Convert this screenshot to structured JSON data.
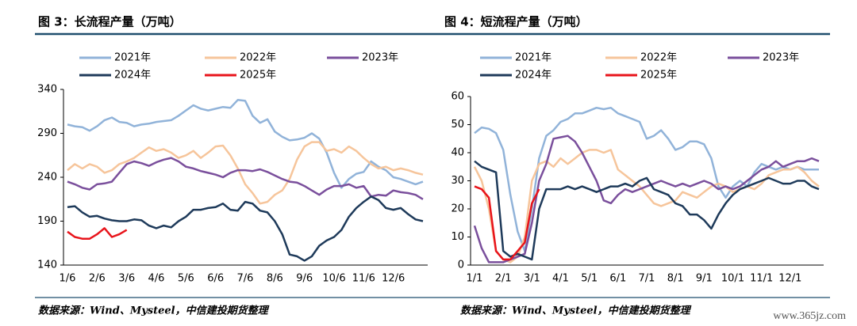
{
  "chart_data": [
    {
      "type": "line",
      "title": "图 3：长流程产量（万吨）",
      "source": "数据来源：Wind、Mysteel，中信建投期货整理",
      "categories": [
        "1/6",
        null,
        null,
        null,
        "2/6",
        null,
        null,
        null,
        "3/6",
        null,
        null,
        null,
        "4/6",
        null,
        null,
        null,
        "5/6",
        null,
        null,
        null,
        "6/6",
        null,
        null,
        null,
        "7/6",
        null,
        null,
        null,
        "8/6",
        null,
        null,
        null,
        "9/6",
        null,
        null,
        null,
        "10/6",
        null,
        null,
        null,
        "11/6",
        null,
        null,
        null,
        "12/6",
        null,
        null,
        null,
        null
      ],
      "ylim": [
        140,
        340
      ],
      "yticks": [
        140,
        190,
        240,
        290,
        340
      ],
      "series": [
        {
          "name": "2021年",
          "color": "#91b3d9",
          "values": [
            300,
            298,
            297,
            293,
            298,
            305,
            308,
            303,
            302,
            298,
            300,
            301,
            303,
            304,
            305,
            310,
            316,
            322,
            318,
            316,
            318,
            320,
            319,
            328,
            327,
            310,
            302,
            306,
            292,
            286,
            282,
            283,
            285,
            290,
            284,
            268,
            245,
            228,
            238,
            244,
            246,
            258,
            252,
            248,
            240,
            238,
            235,
            232,
            235
          ]
        },
        {
          "name": "2022年",
          "color": "#f6c59b",
          "values": [
            248,
            255,
            250,
            255,
            252,
            245,
            248,
            255,
            258,
            262,
            268,
            274,
            270,
            272,
            268,
            262,
            265,
            270,
            262,
            268,
            275,
            276,
            265,
            250,
            232,
            222,
            210,
            212,
            220,
            225,
            238,
            260,
            275,
            280,
            280,
            270,
            272,
            268,
            275,
            270,
            262,
            255,
            250,
            252,
            248,
            250,
            248,
            245,
            243
          ]
        },
        {
          "name": "2023年",
          "color": "#7a4f9c",
          "values": [
            235,
            232,
            228,
            226,
            232,
            233,
            235,
            245,
            255,
            258,
            256,
            253,
            257,
            260,
            262,
            258,
            252,
            250,
            247,
            245,
            243,
            240,
            245,
            248,
            248,
            247,
            249,
            246,
            242,
            238,
            235,
            234,
            230,
            225,
            220,
            226,
            230,
            230,
            232,
            228,
            230,
            218,
            220,
            219,
            225,
            223,
            222,
            220,
            215
          ]
        },
        {
          "name": "2024年",
          "color": "#1e3a5a",
          "values": [
            206,
            207,
            200,
            195,
            196,
            193,
            191,
            190,
            190,
            192,
            191,
            185,
            182,
            185,
            183,
            190,
            195,
            203,
            203,
            205,
            206,
            210,
            203,
            202,
            212,
            210,
            202,
            200,
            190,
            175,
            152,
            150,
            145,
            150,
            162,
            168,
            172,
            180,
            195,
            205,
            212,
            218,
            214,
            205,
            203,
            205,
            198,
            192,
            190
          ]
        },
        {
          "name": "2025年",
          "color": "#e8141b",
          "values": [
            178,
            172,
            170,
            170,
            175,
            182,
            172,
            175,
            180,
            null,
            null,
            null,
            null,
            null,
            null,
            null,
            null,
            null,
            null,
            null,
            null,
            null,
            null,
            null,
            null,
            null,
            null,
            null,
            null,
            null,
            null,
            null,
            null,
            null,
            null,
            null,
            null,
            null,
            null,
            null,
            null,
            null,
            null,
            null,
            null,
            null,
            null,
            null,
            null
          ]
        }
      ]
    },
    {
      "type": "line",
      "title": "图 4：短流程产量（万吨）",
      "source": "数据来源：Wind、Mysteel，中信建投期货整理",
      "categories": [
        "1/1",
        null,
        null,
        null,
        "2/1",
        null,
        null,
        null,
        "3/1",
        null,
        null,
        null,
        "4/1",
        null,
        null,
        null,
        "5/1",
        null,
        null,
        null,
        "6/1",
        null,
        null,
        null,
        "7/1",
        null,
        null,
        null,
        "8/1",
        null,
        null,
        null,
        "9/1",
        null,
        null,
        null,
        "10/1",
        null,
        null,
        null,
        "11/1",
        null,
        null,
        null,
        "12/1",
        null,
        null,
        null,
        null
      ],
      "ylim": [
        0,
        60
      ],
      "yticks": [
        0,
        10,
        20,
        30,
        40,
        50,
        60
      ],
      "series": [
        {
          "name": "2021年",
          "color": "#91b3d9",
          "values": [
            47,
            49,
            48.5,
            47,
            41,
            25,
            12,
            5,
            20,
            38,
            46,
            48,
            51,
            52,
            54,
            54,
            55,
            56,
            55.5,
            56,
            54,
            53,
            52,
            51,
            45,
            46,
            48,
            45,
            41,
            42,
            44,
            44,
            43,
            38,
            28,
            24,
            28,
            30,
            28,
            33,
            36,
            35,
            34,
            35,
            34,
            35,
            34,
            34,
            34
          ]
        },
        {
          "name": "2022年",
          "color": "#f6c59b",
          "values": [
            35,
            30,
            20,
            5,
            2,
            1,
            3,
            10,
            30,
            36,
            37,
            35,
            38,
            36,
            38,
            40,
            41,
            41,
            40,
            41,
            34,
            32,
            30,
            28,
            25,
            22,
            21,
            22,
            23,
            26,
            25,
            24,
            26,
            28,
            29,
            28,
            26,
            27,
            28,
            27,
            29,
            32,
            33,
            34,
            34,
            35,
            33,
            30,
            28
          ]
        },
        {
          "name": "2023年",
          "color": "#7a4f9c",
          "values": [
            14,
            6,
            1,
            1,
            1,
            2,
            3,
            4,
            15,
            30,
            36,
            45,
            45.5,
            46,
            44,
            40,
            35,
            30,
            23,
            22,
            25,
            27,
            26,
            27,
            28,
            29,
            30,
            29,
            28,
            29,
            28,
            29,
            30,
            29,
            27,
            28,
            27,
            28,
            30,
            32,
            34,
            35,
            37,
            35,
            36,
            37,
            37,
            38,
            37
          ]
        },
        {
          "name": "2024年",
          "color": "#1e3a5a",
          "values": [
            37,
            35,
            34,
            33,
            5,
            3,
            4,
            3,
            2,
            20,
            27,
            27,
            27,
            28,
            27,
            28,
            27,
            26,
            27,
            28,
            28,
            29,
            28,
            30,
            31,
            27,
            26,
            25,
            22,
            21,
            18,
            18,
            16,
            13,
            18,
            22,
            25,
            27,
            28,
            29,
            30,
            31,
            30,
            29,
            29,
            30,
            30,
            28,
            27
          ]
        },
        {
          "name": "2025年",
          "color": "#e8141b",
          "values": [
            28,
            27,
            24,
            5,
            2,
            2,
            5,
            8,
            22,
            27,
            null,
            null,
            null,
            null,
            null,
            null,
            null,
            null,
            null,
            null,
            null,
            null,
            null,
            null,
            null,
            null,
            null,
            null,
            null,
            null,
            null,
            null,
            null,
            null,
            null,
            null,
            null,
            null,
            null,
            null,
            null,
            null,
            null,
            null,
            null,
            null,
            null,
            null,
            null
          ]
        }
      ]
    }
  ],
  "watermark": "www.365jz.com"
}
